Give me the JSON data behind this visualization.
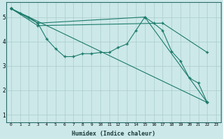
{
  "title": "",
  "xlabel": "Humidex (Indice chaleur)",
  "background_color": "#cce8e8",
  "grid_color": "#aacccc",
  "line_color": "#1a7a6a",
  "xlim": [
    -0.5,
    23.5
  ],
  "ylim": [
    0.7,
    5.6
  ],
  "yticks": [
    1,
    2,
    3,
    4,
    5
  ],
  "xticks": [
    0,
    1,
    2,
    3,
    4,
    5,
    6,
    7,
    8,
    9,
    10,
    11,
    12,
    13,
    14,
    15,
    16,
    17,
    18,
    19,
    20,
    21,
    22,
    23
  ],
  "series": [
    {
      "x": [
        0,
        1,
        2,
        3,
        4,
        5,
        6,
        7,
        8,
        9,
        10,
        11,
        12,
        13,
        14,
        15,
        16,
        17,
        18,
        19,
        20,
        21,
        22
      ],
      "y": [
        5.35,
        5.15,
        5.0,
        4.75,
        4.1,
        3.7,
        3.38,
        3.38,
        3.5,
        3.5,
        3.55,
        3.55,
        3.75,
        3.9,
        4.45,
        5.0,
        4.75,
        4.45,
        3.6,
        3.2,
        2.5,
        2.3,
        1.5
      ]
    },
    {
      "x": [
        0,
        22
      ],
      "y": [
        5.35,
        1.5
      ]
    },
    {
      "comment": "line going 0->3->15->22",
      "x": [
        0,
        3,
        15,
        22
      ],
      "y": [
        5.35,
        4.75,
        5.0,
        1.5
      ]
    },
    {
      "comment": "line going 0->3->17->22",
      "x": [
        0,
        3,
        17,
        22
      ],
      "y": [
        5.35,
        4.65,
        4.75,
        3.55
      ]
    }
  ]
}
